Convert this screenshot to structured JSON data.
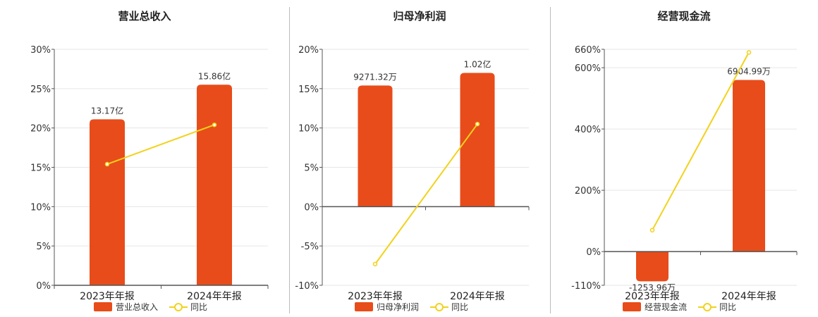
{
  "colors": {
    "bar": "#e84c1a",
    "line": "#f2d21c",
    "grid": "#e6e6e6",
    "axis": "#555555"
  },
  "legend": {
    "bar_icon": "bar-swatch",
    "line_icon": "line-circle-swatch"
  },
  "panels": [
    {
      "title": "营业总收入",
      "legend_bar": "营业总收入",
      "legend_line": "同比"
    },
    {
      "title": "归母净利润",
      "legend_bar": "归母净利润",
      "legend_line": "同比"
    },
    {
      "title": "经营现金流",
      "legend_bar": "经营现金流",
      "legend_line": "同比"
    }
  ],
  "chart_data": [
    {
      "type": "bar",
      "title": "营业总收入",
      "categories": [
        "2023年年报",
        "2024年年报"
      ],
      "series": [
        {
          "name": "营业总收入",
          "type": "bar",
          "values": [
            13.17,
            15.86
          ],
          "unit": "亿",
          "labels": [
            "13.17亿",
            "15.86亿"
          ],
          "axis": "hidden"
        },
        {
          "name": "同比",
          "type": "line",
          "values": [
            15.4,
            20.4
          ],
          "unit": "%"
        }
      ],
      "bar_plot_values": [
        21.1,
        25.5
      ],
      "yticks": [
        "30%",
        "25%",
        "20%",
        "15%",
        "10%",
        "5%",
        "0%"
      ],
      "ylim": [
        0,
        30
      ]
    },
    {
      "type": "bar",
      "title": "归母净利润",
      "categories": [
        "2023年年报",
        "2024年年报"
      ],
      "series": [
        {
          "name": "归母净利润",
          "type": "bar",
          "values": [
            9271.32,
            10200
          ],
          "unit": "万",
          "labels": [
            "9271.32万",
            "1.02亿"
          ],
          "axis": "hidden"
        },
        {
          "name": "同比",
          "type": "line",
          "values": [
            -7.3,
            10.5
          ],
          "unit": "%"
        }
      ],
      "bar_plot_values": [
        15.4,
        17.0
      ],
      "yticks": [
        "20%",
        "15%",
        "10%",
        "5%",
        "0%",
        "-5%",
        "-10%"
      ],
      "ylim": [
        -10,
        20
      ]
    },
    {
      "type": "bar",
      "title": "经营现金流",
      "categories": [
        "2023年年报",
        "2024年年报"
      ],
      "series": [
        {
          "name": "经营现金流",
          "type": "bar",
          "values": [
            -1253.96,
            6904.99
          ],
          "unit": "万",
          "labels": [
            "-1253.96万",
            "6904.99万"
          ],
          "axis": "hidden"
        },
        {
          "name": "同比",
          "type": "line",
          "values": [
            70,
            650
          ],
          "unit": "%"
        }
      ],
      "bar_plot_values": [
        -97,
        560
      ],
      "yticks": [
        "660%",
        "600%",
        "400%",
        "200%",
        "0%",
        "-110%"
      ],
      "ylim": [
        -110,
        660
      ]
    }
  ]
}
